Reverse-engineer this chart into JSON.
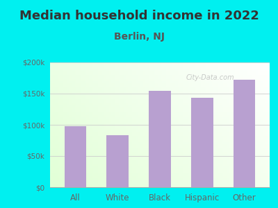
{
  "title": "Median household income in 2022",
  "subtitle": "Berlin, NJ",
  "categories": [
    "All",
    "White",
    "Black",
    "Hispanic",
    "Other"
  ],
  "values": [
    98000,
    83000,
    155000,
    143000,
    172000
  ],
  "bar_color": "#b8a0d0",
  "background_outer": "#00f0f0",
  "ylim": [
    0,
    200000
  ],
  "yticks": [
    0,
    50000,
    100000,
    150000,
    200000
  ],
  "ytick_labels": [
    "$0",
    "$50k",
    "$100k",
    "$150k",
    "$200k"
  ],
  "title_fontsize": 13,
  "subtitle_fontsize": 10,
  "watermark": "City-Data.com",
  "title_color": "#333333",
  "subtitle_color": "#555555",
  "tick_color": "#666666",
  "grid_color": "#cccccc"
}
